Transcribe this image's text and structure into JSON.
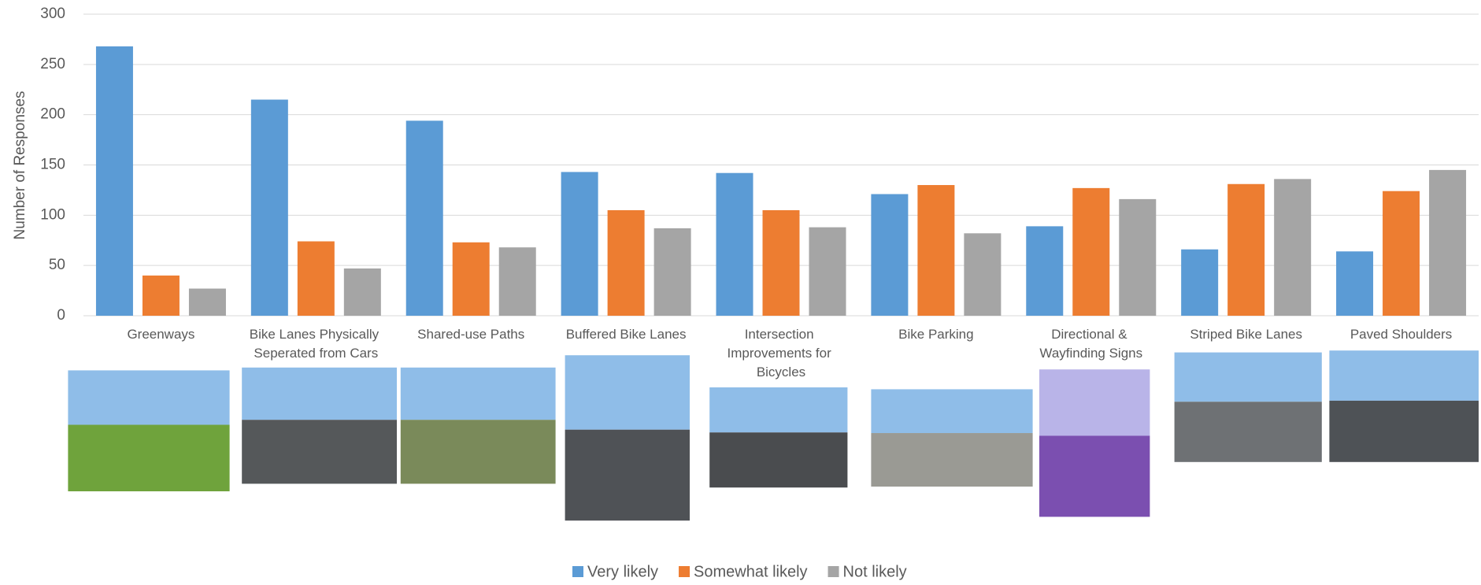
{
  "chart_data": {
    "type": "bar",
    "y_axis_label": "Number of Responses",
    "categories": [
      "Greenways",
      "Bike Lanes Physically Seperated from Cars",
      "Shared-use Paths",
      "Buffered Bike Lanes",
      "Intersection Improvements for Bicycles",
      "Bike Parking",
      "Directional & Wayfinding Signs",
      "Striped Bike Lanes",
      "Paved Shoulders"
    ],
    "series": [
      {
        "name": "Very likely",
        "color": "#5b9bd5",
        "values": [
          268,
          215,
          194,
          143,
          142,
          121,
          89,
          66,
          64
        ]
      },
      {
        "name": "Somewhat likely",
        "color": "#ed7d31",
        "values": [
          40,
          74,
          73,
          105,
          105,
          130,
          127,
          131,
          124
        ]
      },
      {
        "name": "Not likely",
        "color": "#a5a5a5",
        "values": [
          27,
          47,
          68,
          87,
          88,
          82,
          116,
          136,
          145
        ]
      }
    ],
    "ylim": [
      0,
      300
    ],
    "yticks": [
      0,
      50,
      100,
      150,
      200,
      250,
      300
    ],
    "grid": true,
    "legend": "bottom"
  }
}
